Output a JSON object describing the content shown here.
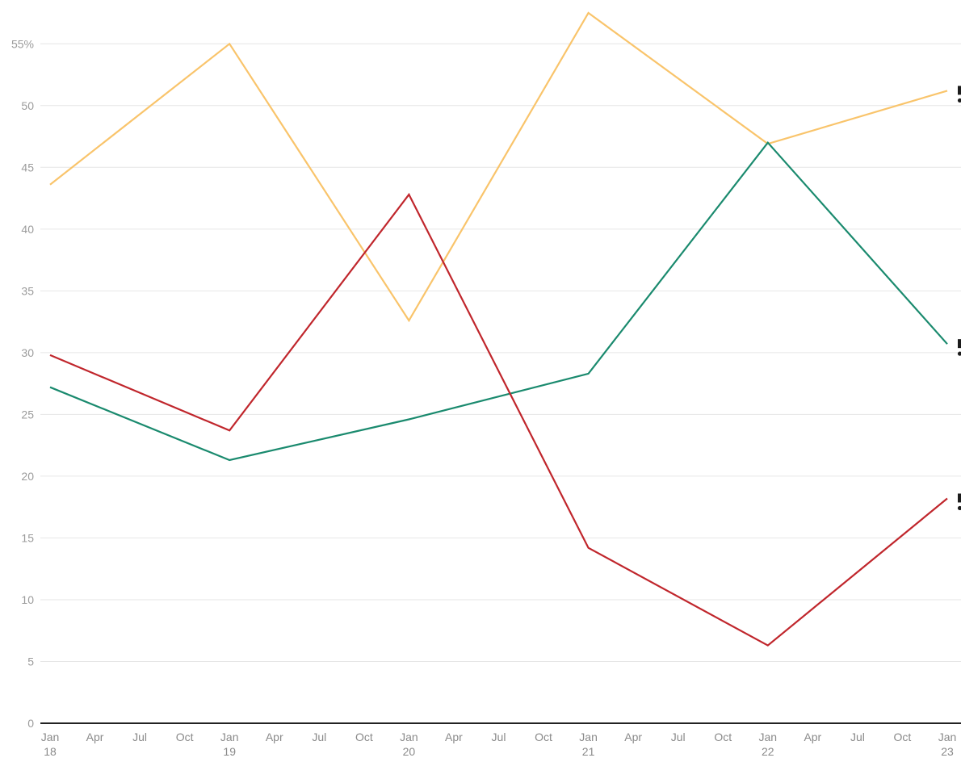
{
  "chart_data": {
    "type": "line",
    "x": [
      "2018-01",
      "2019-01",
      "2020-01",
      "2021-01",
      "2022-01",
      "2023-01"
    ],
    "series": [
      {
        "color": "#f9c46b",
        "values": [
          43.6,
          55.0,
          32.6,
          57.5,
          46.9,
          51.2
        ]
      },
      {
        "color": "#1a8a6e",
        "values": [
          27.2,
          21.3,
          24.6,
          28.3,
          47.0,
          30.7
        ]
      },
      {
        "color": "#c0262c",
        "values": [
          29.8,
          23.7,
          42.8,
          14.2,
          6.3,
          18.2
        ]
      }
    ],
    "ylim": [
      0,
      57.5
    ],
    "yticks": [
      {
        "value": 0,
        "label": "0"
      },
      {
        "value": 5,
        "label": "5"
      },
      {
        "value": 10,
        "label": "10"
      },
      {
        "value": 15,
        "label": "15"
      },
      {
        "value": 20,
        "label": "20"
      },
      {
        "value": 25,
        "label": "25"
      },
      {
        "value": 30,
        "label": "30"
      },
      {
        "value": 35,
        "label": "35"
      },
      {
        "value": 40,
        "label": "40"
      },
      {
        "value": 45,
        "label": "45"
      },
      {
        "value": 50,
        "label": "50"
      },
      {
        "value": 55,
        "label": "55%"
      }
    ],
    "xticks": [
      {
        "value": "2018-01",
        "line1": "Jan",
        "line2": "18"
      },
      {
        "value": "2018-04",
        "line1": "Apr",
        "line2": ""
      },
      {
        "value": "2018-07",
        "line1": "Jul",
        "line2": ""
      },
      {
        "value": "2018-10",
        "line1": "Oct",
        "line2": ""
      },
      {
        "value": "2019-01",
        "line1": "Jan",
        "line2": "19"
      },
      {
        "value": "2019-04",
        "line1": "Apr",
        "line2": ""
      },
      {
        "value": "2019-07",
        "line1": "Jul",
        "line2": ""
      },
      {
        "value": "2019-10",
        "line1": "Oct",
        "line2": ""
      },
      {
        "value": "2020-01",
        "line1": "Jan",
        "line2": "20"
      },
      {
        "value": "2020-04",
        "line1": "Apr",
        "line2": ""
      },
      {
        "value": "2020-07",
        "line1": "Jul",
        "line2": ""
      },
      {
        "value": "2020-10",
        "line1": "Oct",
        "line2": ""
      },
      {
        "value": "2021-01",
        "line1": "Jan",
        "line2": "21"
      },
      {
        "value": "2021-04",
        "line1": "Apr",
        "line2": ""
      },
      {
        "value": "2021-07",
        "line1": "Jul",
        "line2": ""
      },
      {
        "value": "2021-10",
        "line1": "Oct",
        "line2": ""
      },
      {
        "value": "2022-01",
        "line1": "Jan",
        "line2": "22"
      },
      {
        "value": "2022-04",
        "line1": "Apr",
        "line2": ""
      },
      {
        "value": "2022-07",
        "line1": "Jul",
        "line2": ""
      },
      {
        "value": "2022-10",
        "line1": "Oct",
        "line2": ""
      },
      {
        "value": "2023-01",
        "line1": "Jan",
        "line2": "23"
      }
    ],
    "grid": true,
    "legend": "none"
  }
}
